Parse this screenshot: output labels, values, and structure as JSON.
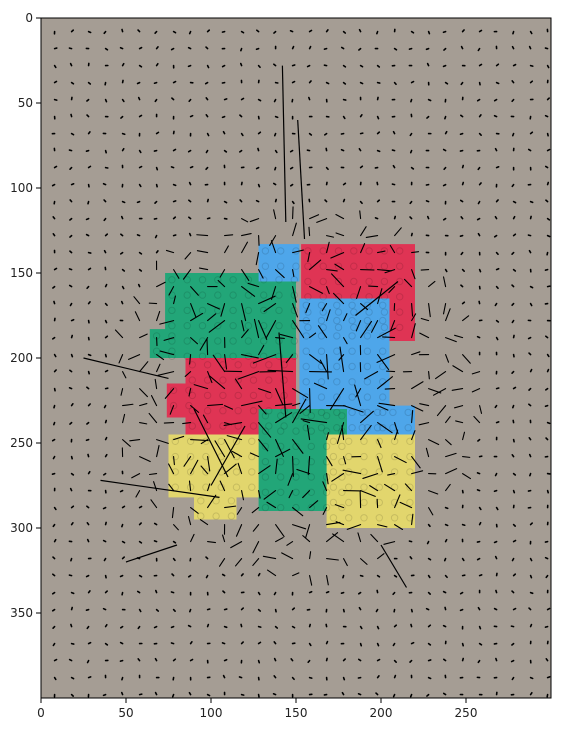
{
  "chart_data": {
    "type": "quiver",
    "title": "",
    "xlabel": "",
    "ylabel": "",
    "xlim": [
      0,
      300
    ],
    "ylim": [
      400,
      0
    ],
    "grid": false,
    "x_ticks": [
      0,
      50,
      100,
      150,
      200,
      250
    ],
    "y_ticks": [
      0,
      50,
      100,
      150,
      200,
      250,
      300,
      350
    ],
    "background": "photograph of colored interlocking plastic bricks on cardboard",
    "brick_colors": {
      "cardboard": "#a59d94",
      "green": "#22a678",
      "blue": "#4ea6ea",
      "red": "#df3454",
      "yellow": "#e2d66d"
    },
    "arrow_color": "#000000",
    "vector_grid_spacing": 10,
    "bricks": [
      {
        "color": "green",
        "x": [
          73,
          150
        ],
        "y": [
          150,
          200
        ]
      },
      {
        "color": "green",
        "x": [
          64,
          80
        ],
        "y": [
          183,
          200
        ]
      },
      {
        "color": "blue",
        "x": [
          128,
          152
        ],
        "y": [
          133,
          155
        ]
      },
      {
        "color": "red",
        "x": [
          153,
          220
        ],
        "y": [
          133,
          190
        ]
      },
      {
        "color": "red",
        "x": [
          85,
          150
        ],
        "y": [
          200,
          245
        ]
      },
      {
        "color": "red",
        "x": [
          74,
          90
        ],
        "y": [
          215,
          235
        ]
      },
      {
        "color": "blue",
        "x": [
          152,
          205
        ],
        "y": [
          165,
          245
        ]
      },
      {
        "color": "blue",
        "x": [
          185,
          220
        ],
        "y": [
          228,
          250
        ]
      },
      {
        "color": "green",
        "x": [
          128,
          180
        ],
        "y": [
          230,
          290
        ]
      },
      {
        "color": "yellow",
        "x": [
          75,
          128
        ],
        "y": [
          245,
          282
        ]
      },
      {
        "color": "yellow",
        "x": [
          90,
          115
        ],
        "y": [
          280,
          295
        ]
      },
      {
        "color": "yellow",
        "x": [
          168,
          220
        ],
        "y": [
          245,
          300
        ]
      }
    ],
    "long_vectors": [
      {
        "x": 144,
        "y": 120,
        "dx": -2,
        "dy": -92
      },
      {
        "x": 155,
        "y": 130,
        "dx": -4,
        "dy": -70
      },
      {
        "x": 140,
        "y": 185,
        "dx": 4,
        "dy": 50
      },
      {
        "x": 25,
        "y": 200,
        "dx": 50,
        "dy": 12
      },
      {
        "x": 35,
        "y": 272,
        "dx": 70,
        "dy": 10
      },
      {
        "x": 50,
        "y": 320,
        "dx": 30,
        "dy": -10
      },
      {
        "x": 90,
        "y": 230,
        "dx": 20,
        "dy": 40
      },
      {
        "x": 120,
        "y": 240,
        "dx": -20,
        "dy": 35
      },
      {
        "x": 185,
        "y": 175,
        "dx": 25,
        "dy": -20
      },
      {
        "x": 200,
        "y": 310,
        "dx": 15,
        "dy": 25
      }
    ]
  }
}
